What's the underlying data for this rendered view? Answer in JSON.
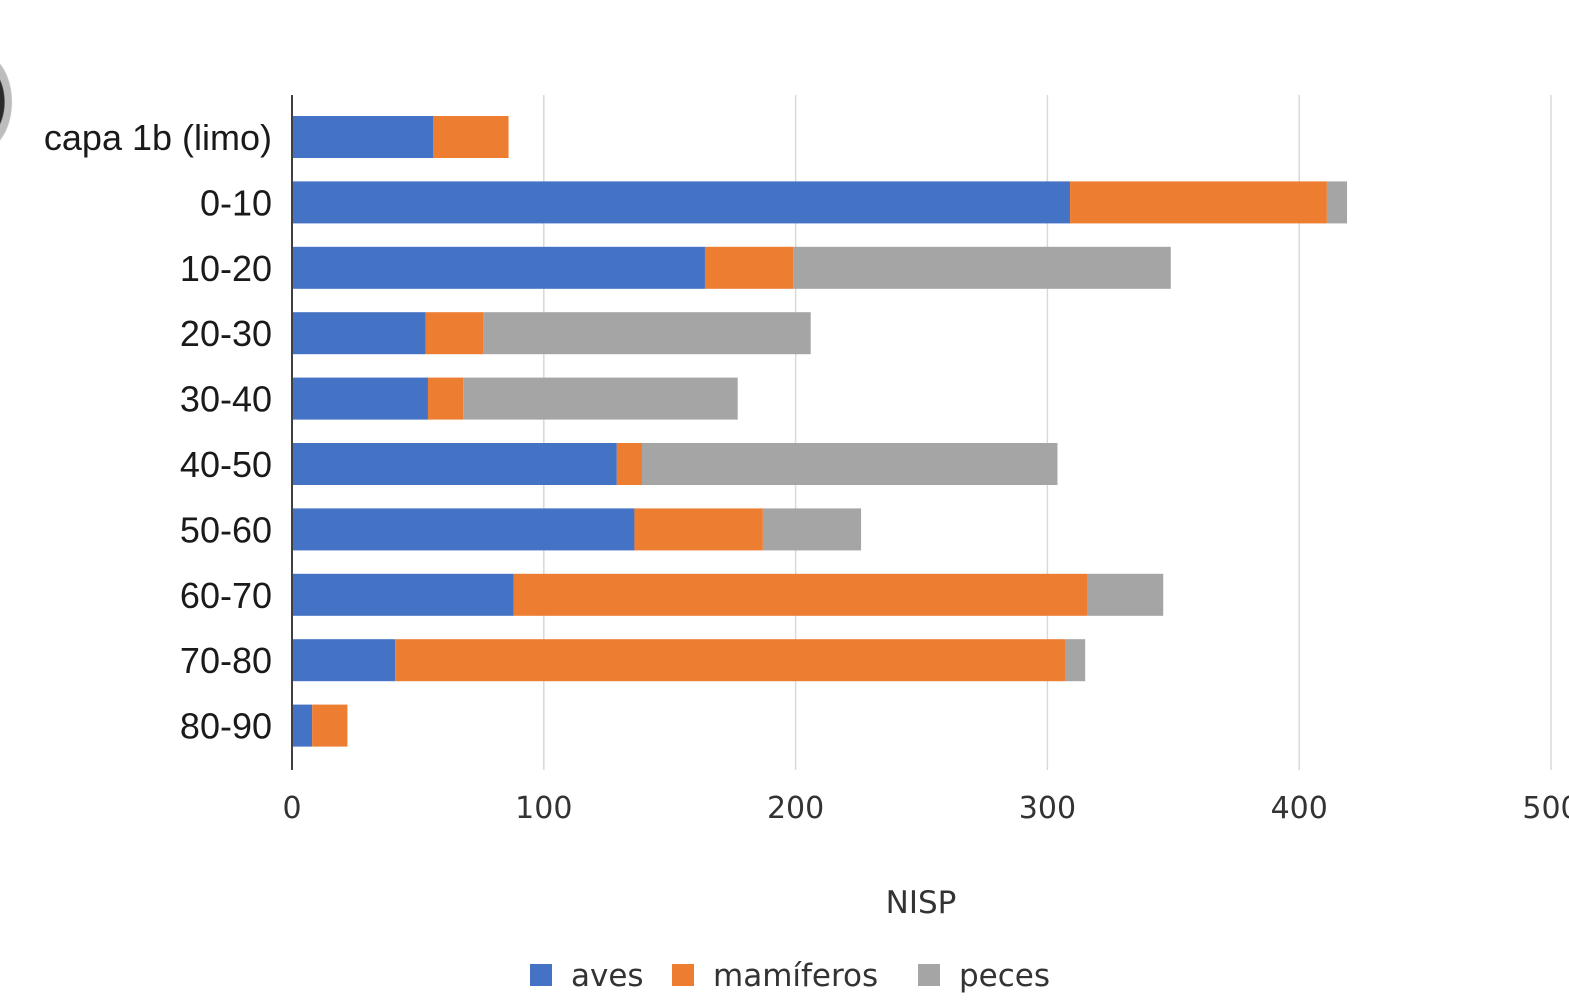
{
  "chart_data": {
    "type": "bar",
    "orientation": "horizontal",
    "stacked": true,
    "categories": [
      "capa 1b (limo)",
      "0-10",
      "10-20",
      "20-30",
      "30-40",
      "40-50",
      "50-60",
      "60-70",
      "70-80",
      "80-90"
    ],
    "series": [
      {
        "name": "aves",
        "color": "#4472C4",
        "values": [
          56,
          309,
          164,
          53,
          54,
          129,
          136,
          88,
          41,
          8
        ]
      },
      {
        "name": "mamíferos",
        "color": "#ED7D31",
        "values": [
          30,
          102,
          35,
          23,
          14,
          10,
          51,
          228,
          266,
          14
        ]
      },
      {
        "name": "peces",
        "color": "#A5A5A5",
        "values": [
          0,
          8,
          150,
          130,
          109,
          165,
          39,
          30,
          8,
          0
        ]
      }
    ],
    "xaxis": {
      "ticks": [
        "0",
        "100",
        "200",
        "300",
        "400",
        "500"
      ],
      "range": [
        0,
        500
      ]
    },
    "xlabel": "NISP",
    "ylabel": "",
    "grid": true,
    "legend": "bottom"
  }
}
